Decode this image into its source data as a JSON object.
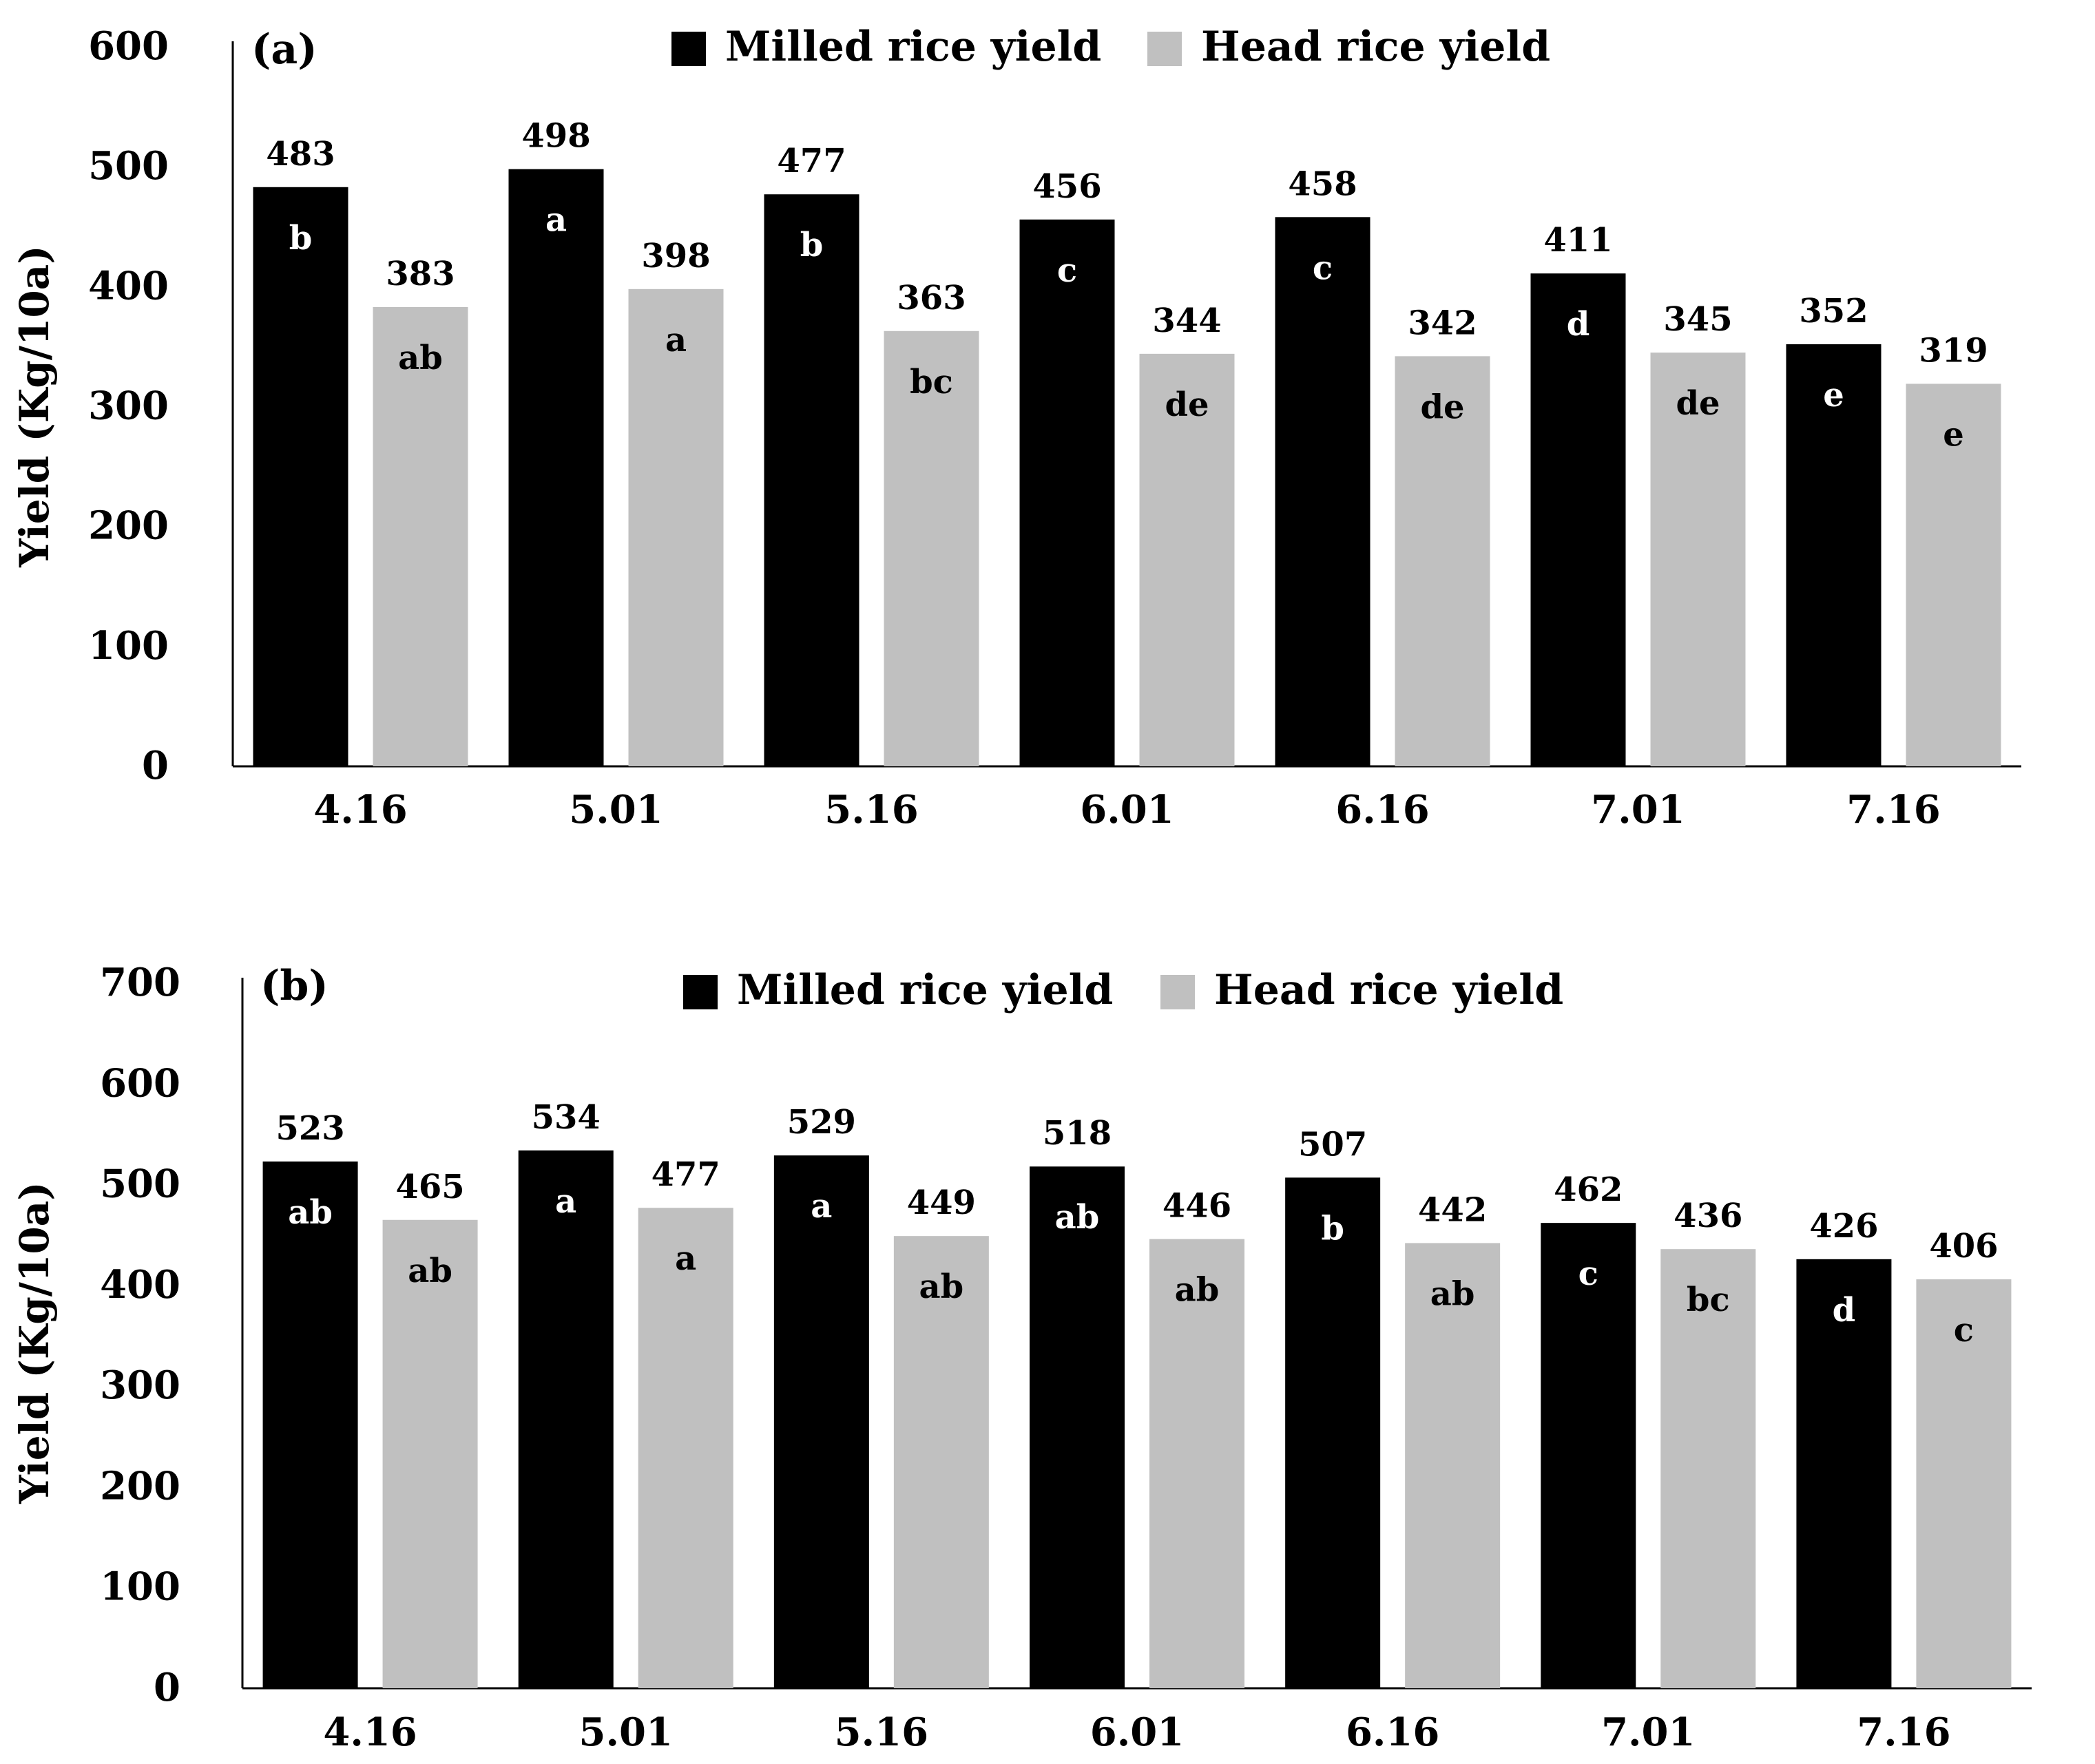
{
  "chart_data": [
    {
      "type": "bar",
      "panel_label": "(a)",
      "title": "",
      "xlabel": "",
      "ylabel": "Yield (Kg/10a)",
      "ylim": [
        0,
        600
      ],
      "yticks": [
        0,
        100,
        200,
        300,
        400,
        500,
        600
      ],
      "grid": false,
      "legend_position": "top-center",
      "categories": [
        "4.16",
        "5.01",
        "5.16",
        "6.01",
        "6.16",
        "7.01",
        "7.16"
      ],
      "series": [
        {
          "name": "Milled rice yield",
          "color": "#000000",
          "values": [
            483,
            498,
            477,
            456,
            458,
            411,
            352
          ],
          "groups": [
            "b",
            "a",
            "b",
            "c",
            "c",
            "d",
            "e"
          ]
        },
        {
          "name": "Head rice yield",
          "color": "#c0c0c0",
          "values": [
            383,
            398,
            363,
            344,
            342,
            345,
            319
          ],
          "groups": [
            "ab",
            "a",
            "bc",
            "de",
            "de",
            "de",
            "e"
          ]
        }
      ]
    },
    {
      "type": "bar",
      "panel_label": "(b)",
      "title": "",
      "xlabel": "",
      "ylabel": "Yield (Kg/10a)",
      "ylim": [
        0,
        700
      ],
      "yticks": [
        0,
        100,
        200,
        300,
        400,
        500,
        600,
        700
      ],
      "grid": false,
      "legend_position": "top-center",
      "categories": [
        "4.16",
        "5.01",
        "5.16",
        "6.01",
        "6.16",
        "7.01",
        "7.16"
      ],
      "series": [
        {
          "name": "Milled rice yield",
          "color": "#000000",
          "values": [
            523,
            534,
            529,
            518,
            507,
            462,
            426
          ],
          "groups": [
            "ab",
            "a",
            "a",
            "ab",
            "b",
            "c",
            "d"
          ]
        },
        {
          "name": "Head rice yield",
          "color": "#c0c0c0",
          "values": [
            465,
            477,
            449,
            446,
            442,
            436,
            406
          ],
          "groups": [
            "ab",
            "a",
            "ab",
            "ab",
            "ab",
            "bc",
            "c"
          ]
        }
      ]
    }
  ]
}
